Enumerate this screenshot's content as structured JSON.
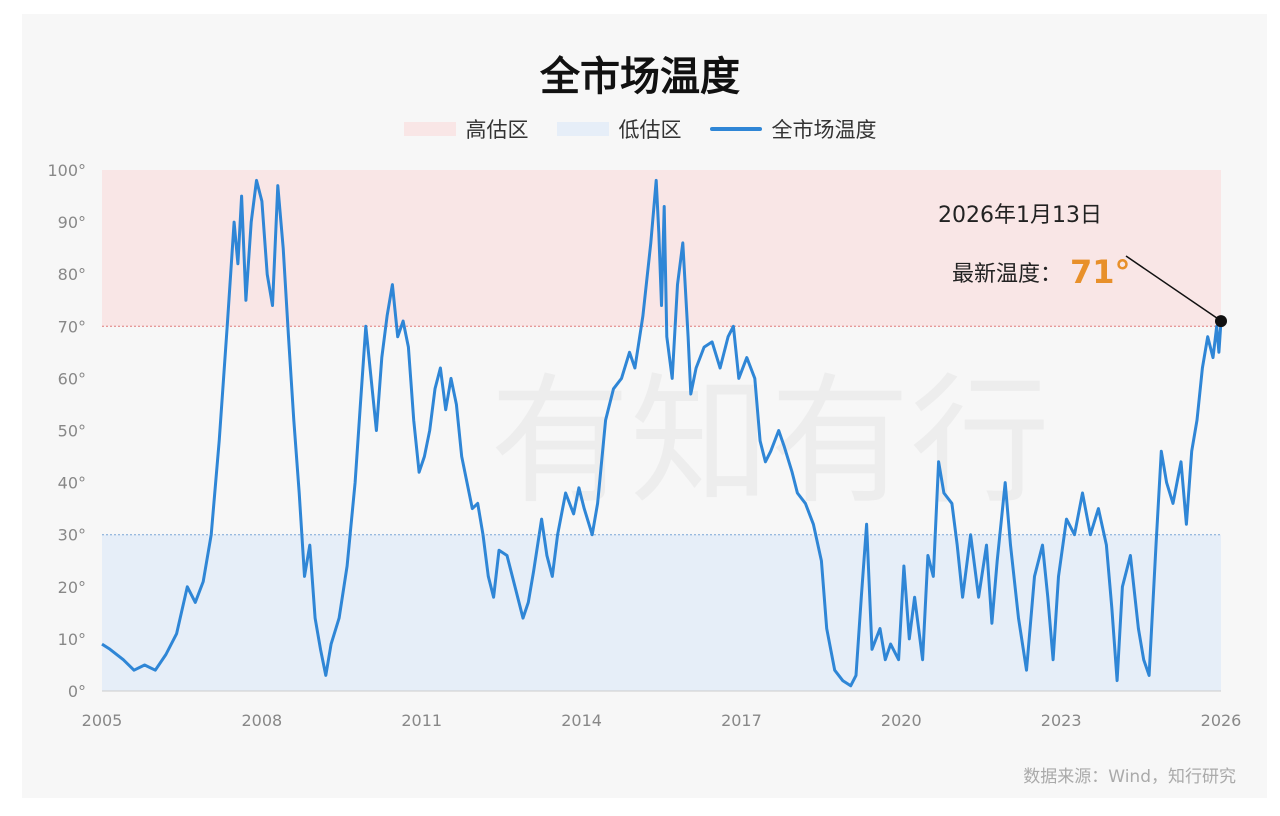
{
  "chart_data": {
    "type": "line",
    "title": "全市场温度",
    "legend": [
      {
        "label": "高估区",
        "color": "#f9e6e6",
        "kind": "band"
      },
      {
        "label": "低估区",
        "color": "#e6eef8",
        "kind": "band"
      },
      {
        "label": "全市场温度",
        "color": "#2f86d6",
        "kind": "line"
      }
    ],
    "legend_position": "top",
    "grid": false,
    "xlim": [
      2005,
      2026
    ],
    "ylim": [
      0,
      100
    ],
    "x_ticks": [
      "2005",
      "2008",
      "2011",
      "2014",
      "2017",
      "2020",
      "2023",
      "2026"
    ],
    "y_ticks": [
      "0°",
      "10°",
      "20°",
      "30°",
      "40°",
      "50°",
      "60°",
      "70°",
      "80°",
      "90°",
      "100°"
    ],
    "bands": [
      {
        "name": "高估区",
        "from": 70,
        "to": 100,
        "color": "#f9e6e6"
      },
      {
        "name": "低估区",
        "from": 0,
        "to": 30,
        "color": "#e6eef8"
      }
    ],
    "threshold_lines": [
      {
        "y": 70,
        "color": "#e07a7a"
      },
      {
        "y": 30,
        "color": "#7aa6d6"
      }
    ],
    "series": [
      {
        "name": "全市场温度",
        "color": "#2f86d6",
        "points": [
          [
            2005.0,
            9
          ],
          [
            2005.15,
            8
          ],
          [
            2005.4,
            6
          ],
          [
            2005.6,
            4
          ],
          [
            2005.8,
            5
          ],
          [
            2006.0,
            4
          ],
          [
            2006.2,
            7
          ],
          [
            2006.4,
            11
          ],
          [
            2006.6,
            20
          ],
          [
            2006.75,
            17
          ],
          [
            2006.9,
            21
          ],
          [
            2007.05,
            30
          ],
          [
            2007.2,
            48
          ],
          [
            2007.35,
            70
          ],
          [
            2007.48,
            90
          ],
          [
            2007.55,
            82
          ],
          [
            2007.62,
            95
          ],
          [
            2007.7,
            75
          ],
          [
            2007.8,
            90
          ],
          [
            2007.9,
            98
          ],
          [
            2008.0,
            94
          ],
          [
            2008.1,
            80
          ],
          [
            2008.2,
            74
          ],
          [
            2008.3,
            97
          ],
          [
            2008.4,
            85
          ],
          [
            2008.5,
            68
          ],
          [
            2008.6,
            52
          ],
          [
            2008.7,
            38
          ],
          [
            2008.8,
            22
          ],
          [
            2008.9,
            28
          ],
          [
            2009.0,
            14
          ],
          [
            2009.1,
            8
          ],
          [
            2009.2,
            3
          ],
          [
            2009.3,
            9
          ],
          [
            2009.45,
            14
          ],
          [
            2009.6,
            24
          ],
          [
            2009.75,
            40
          ],
          [
            2009.85,
            55
          ],
          [
            2009.95,
            70
          ],
          [
            2010.05,
            60
          ],
          [
            2010.15,
            50
          ],
          [
            2010.25,
            64
          ],
          [
            2010.35,
            72
          ],
          [
            2010.45,
            78
          ],
          [
            2010.55,
            68
          ],
          [
            2010.65,
            71
          ],
          [
            2010.75,
            66
          ],
          [
            2010.85,
            52
          ],
          [
            2010.95,
            42
          ],
          [
            2011.05,
            45
          ],
          [
            2011.15,
            50
          ],
          [
            2011.25,
            58
          ],
          [
            2011.35,
            62
          ],
          [
            2011.45,
            54
          ],
          [
            2011.55,
            60
          ],
          [
            2011.65,
            55
          ],
          [
            2011.75,
            45
          ],
          [
            2011.85,
            40
          ],
          [
            2011.95,
            35
          ],
          [
            2012.05,
            36
          ],
          [
            2012.15,
            30
          ],
          [
            2012.25,
            22
          ],
          [
            2012.35,
            18
          ],
          [
            2012.45,
            27
          ],
          [
            2012.6,
            26
          ],
          [
            2012.75,
            20
          ],
          [
            2012.9,
            14
          ],
          [
            2013.0,
            17
          ],
          [
            2013.1,
            23
          ],
          [
            2013.25,
            33
          ],
          [
            2013.35,
            26
          ],
          [
            2013.45,
            22
          ],
          [
            2013.55,
            30
          ],
          [
            2013.7,
            38
          ],
          [
            2013.85,
            34
          ],
          [
            2013.95,
            39
          ],
          [
            2014.05,
            35
          ],
          [
            2014.2,
            30
          ],
          [
            2014.3,
            36
          ],
          [
            2014.45,
            52
          ],
          [
            2014.6,
            58
          ],
          [
            2014.75,
            60
          ],
          [
            2014.9,
            65
          ],
          [
            2015.0,
            62
          ],
          [
            2015.15,
            72
          ],
          [
            2015.3,
            86
          ],
          [
            2015.4,
            98
          ],
          [
            2015.45,
            88
          ],
          [
            2015.5,
            74
          ],
          [
            2015.55,
            93
          ],
          [
            2015.6,
            68
          ],
          [
            2015.7,
            60
          ],
          [
            2015.8,
            78
          ],
          [
            2015.9,
            86
          ],
          [
            2016.0,
            68
          ],
          [
            2016.05,
            57
          ],
          [
            2016.15,
            62
          ],
          [
            2016.3,
            66
          ],
          [
            2016.45,
            67
          ],
          [
            2016.6,
            62
          ],
          [
            2016.75,
            68
          ],
          [
            2016.85,
            70
          ],
          [
            2016.95,
            60
          ],
          [
            2017.1,
            64
          ],
          [
            2017.25,
            60
          ],
          [
            2017.35,
            48
          ],
          [
            2017.45,
            44
          ],
          [
            2017.55,
            46
          ],
          [
            2017.7,
            50
          ],
          [
            2017.8,
            47
          ],
          [
            2017.95,
            42
          ],
          [
            2018.05,
            38
          ],
          [
            2018.2,
            36
          ],
          [
            2018.35,
            32
          ],
          [
            2018.5,
            25
          ],
          [
            2018.6,
            12
          ],
          [
            2018.75,
            4
          ],
          [
            2018.9,
            2
          ],
          [
            2019.05,
            1
          ],
          [
            2019.15,
            3
          ],
          [
            2019.25,
            18
          ],
          [
            2019.35,
            32
          ],
          [
            2019.45,
            8
          ],
          [
            2019.6,
            12
          ],
          [
            2019.7,
            6
          ],
          [
            2019.8,
            9
          ],
          [
            2019.95,
            6
          ],
          [
            2020.05,
            24
          ],
          [
            2020.15,
            10
          ],
          [
            2020.25,
            18
          ],
          [
            2020.4,
            6
          ],
          [
            2020.5,
            26
          ],
          [
            2020.6,
            22
          ],
          [
            2020.7,
            44
          ],
          [
            2020.8,
            38
          ],
          [
            2020.95,
            36
          ],
          [
            2021.05,
            28
          ],
          [
            2021.15,
            18
          ],
          [
            2021.3,
            30
          ],
          [
            2021.45,
            18
          ],
          [
            2021.6,
            28
          ],
          [
            2021.7,
            13
          ],
          [
            2021.8,
            25
          ],
          [
            2021.95,
            40
          ],
          [
            2022.05,
            28
          ],
          [
            2022.2,
            14
          ],
          [
            2022.35,
            4
          ],
          [
            2022.5,
            22
          ],
          [
            2022.65,
            28
          ],
          [
            2022.75,
            18
          ],
          [
            2022.85,
            6
          ],
          [
            2022.95,
            22
          ],
          [
            2023.1,
            33
          ],
          [
            2023.25,
            30
          ],
          [
            2023.4,
            38
          ],
          [
            2023.55,
            30
          ],
          [
            2023.7,
            35
          ],
          [
            2023.85,
            28
          ],
          [
            2023.95,
            16
          ],
          [
            2024.05,
            2
          ],
          [
            2024.15,
            20
          ],
          [
            2024.3,
            26
          ],
          [
            2024.45,
            12
          ],
          [
            2024.55,
            6
          ],
          [
            2024.65,
            3
          ],
          [
            2024.78,
            28
          ],
          [
            2024.88,
            46
          ],
          [
            2024.98,
            40
          ],
          [
            2025.1,
            36
          ],
          [
            2025.25,
            44
          ],
          [
            2025.35,
            32
          ],
          [
            2025.45,
            46
          ],
          [
            2025.55,
            52
          ],
          [
            2025.65,
            62
          ],
          [
            2025.75,
            68
          ],
          [
            2025.85,
            64
          ],
          [
            2025.92,
            70
          ],
          [
            2025.96,
            65
          ],
          [
            2026.0,
            71
          ]
        ]
      }
    ],
    "annotation": {
      "date": "2026年1月13日",
      "label": "最新温度：",
      "value": "71°",
      "x": 2026.0,
      "y": 71
    }
  },
  "watermark": "有知有行",
  "source": "数据来源：Wind，知行研究"
}
